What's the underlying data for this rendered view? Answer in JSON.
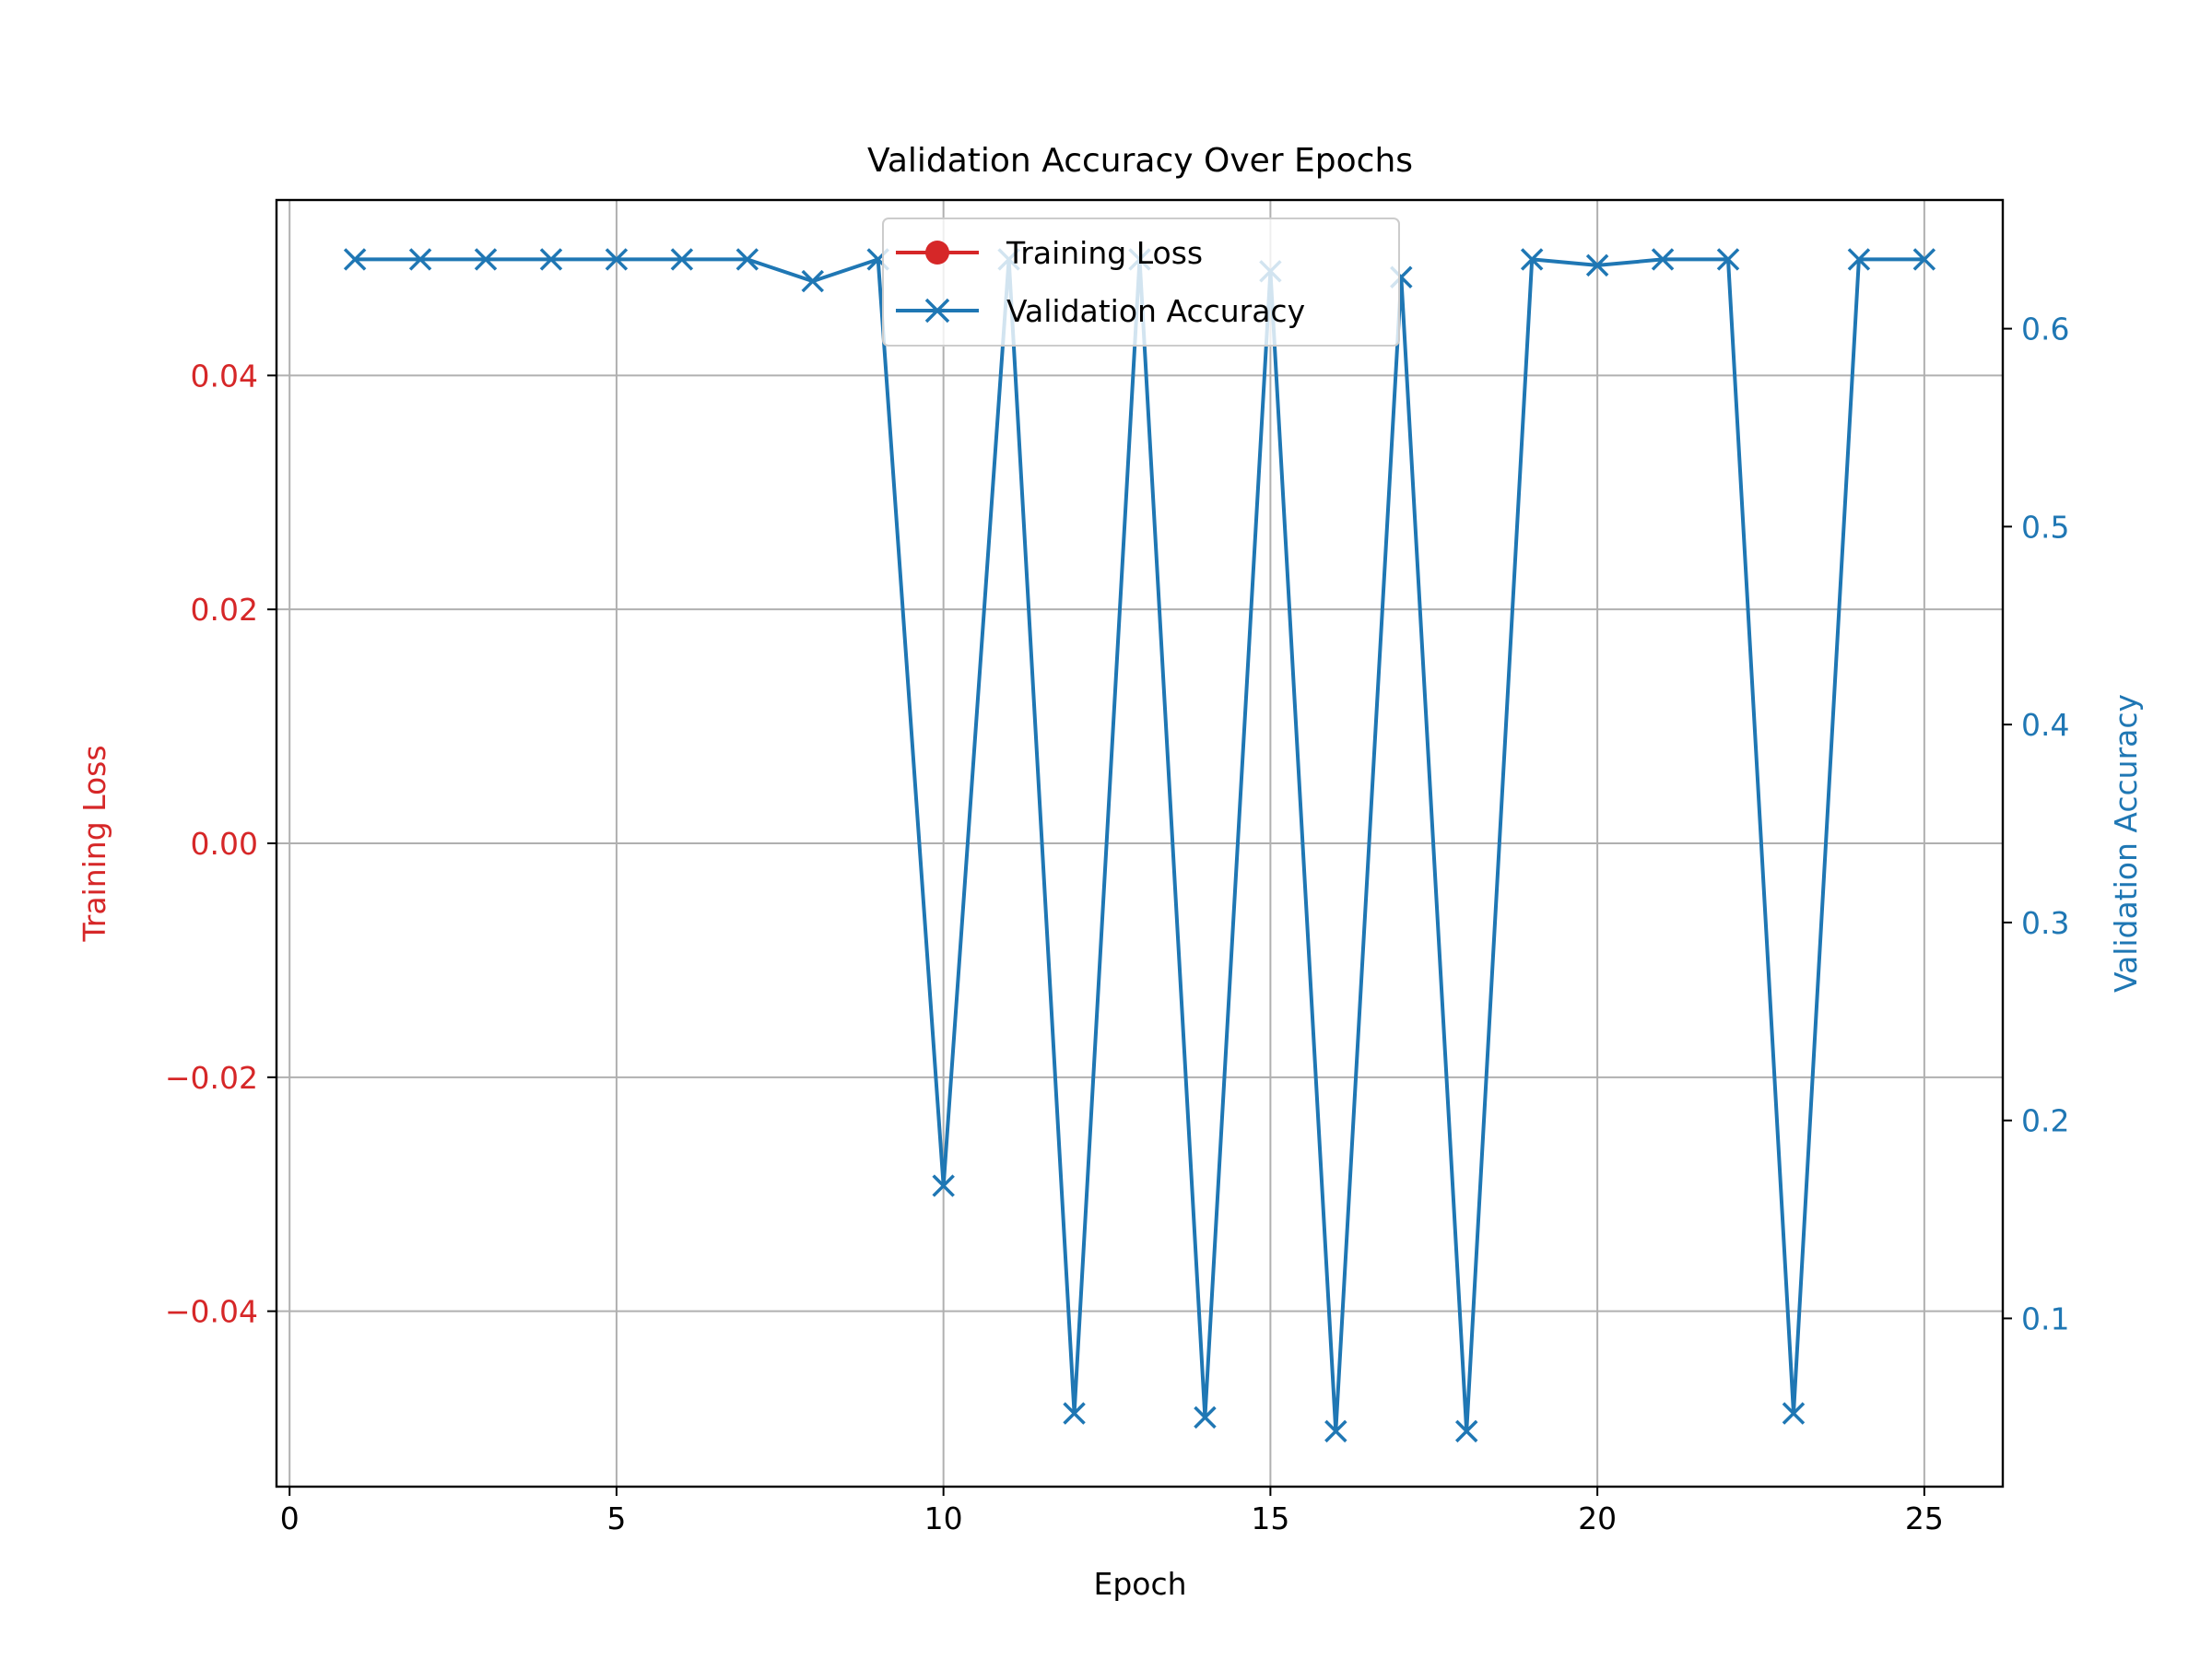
{
  "chart_data": {
    "type": "line",
    "title": "Validation Accuracy Over Epochs",
    "xlabel": "Epoch",
    "ylabel_left": "Training Loss",
    "ylabel_right": "Validation Accuracy",
    "xlim": [
      -0.2,
      26.2
    ],
    "xticks": [
      0,
      5,
      10,
      15,
      20,
      25
    ],
    "ylim_left": [
      -0.055,
      0.055
    ],
    "yticks_left": [
      -0.04,
      -0.02,
      0.0,
      0.02,
      0.04
    ],
    "ytick_labels_left": [
      "−0.04",
      "−0.02",
      "0.00",
      "0.02",
      "0.04"
    ],
    "ylim_right": [
      0.015,
      0.665
    ],
    "yticks_right": [
      0.1,
      0.2,
      0.3,
      0.4,
      0.5,
      0.6
    ],
    "ytick_labels_right": [
      "0.1",
      "0.2",
      "0.3",
      "0.4",
      "0.5",
      "0.6"
    ],
    "grid": true,
    "legend_position": "upper center",
    "series": [
      {
        "name": "Training Loss",
        "axis": "left",
        "color": "#d62728",
        "marker": "circle",
        "x": [],
        "y": []
      },
      {
        "name": "Validation Accuracy",
        "axis": "right",
        "color": "#1f77b4",
        "marker": "x",
        "x": [
          1,
          2,
          3,
          4,
          5,
          6,
          7,
          8,
          9,
          10,
          11,
          12,
          13,
          14,
          15,
          16,
          17,
          18,
          19,
          20,
          21,
          22,
          23,
          24,
          25
        ],
        "y": [
          0.635,
          0.635,
          0.635,
          0.635,
          0.635,
          0.635,
          0.635,
          0.624,
          0.635,
          0.167,
          0.635,
          0.052,
          0.635,
          0.05,
          0.629,
          0.043,
          0.626,
          0.043,
          0.635,
          0.632,
          0.635,
          0.635,
          0.052,
          0.635,
          0.635
        ]
      }
    ]
  }
}
